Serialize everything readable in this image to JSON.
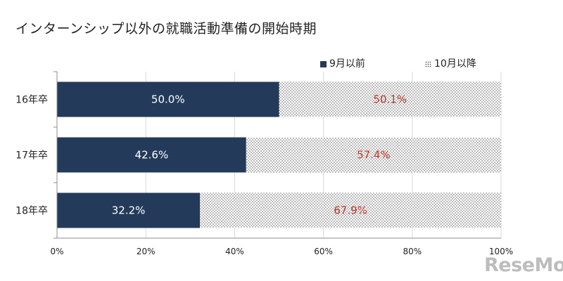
{
  "title": "インターンシップ以外の就職活動準備の開始時期",
  "logo_text": "ReseMom",
  "colors": {
    "dark": "#243a5a",
    "outer_text": "#c0392b",
    "inner_text": "#ffffff"
  },
  "chart_data": {
    "type": "bar",
    "orientation": "horizontal",
    "stacked": true,
    "categories": [
      "16年卒",
      "17年卒",
      "18年卒"
    ],
    "series": [
      {
        "name": "9月以前",
        "values": [
          50.0,
          42.6,
          32.2
        ],
        "labels": [
          "50.0%",
          "42.6%",
          "32.2%"
        ],
        "color": "#243a5a",
        "pattern": "solid"
      },
      {
        "name": "10月以降",
        "values": [
          50.1,
          57.4,
          67.9
        ],
        "labels": [
          "50.1%",
          "57.4%",
          "67.9%"
        ],
        "color": "#ffffff",
        "pattern": "dotted"
      }
    ],
    "xlim": [
      0,
      100
    ],
    "xticks": [
      "0%",
      "20%",
      "40%",
      "60%",
      "80%",
      "100%"
    ],
    "grid": true,
    "legend_position": "top-right"
  }
}
